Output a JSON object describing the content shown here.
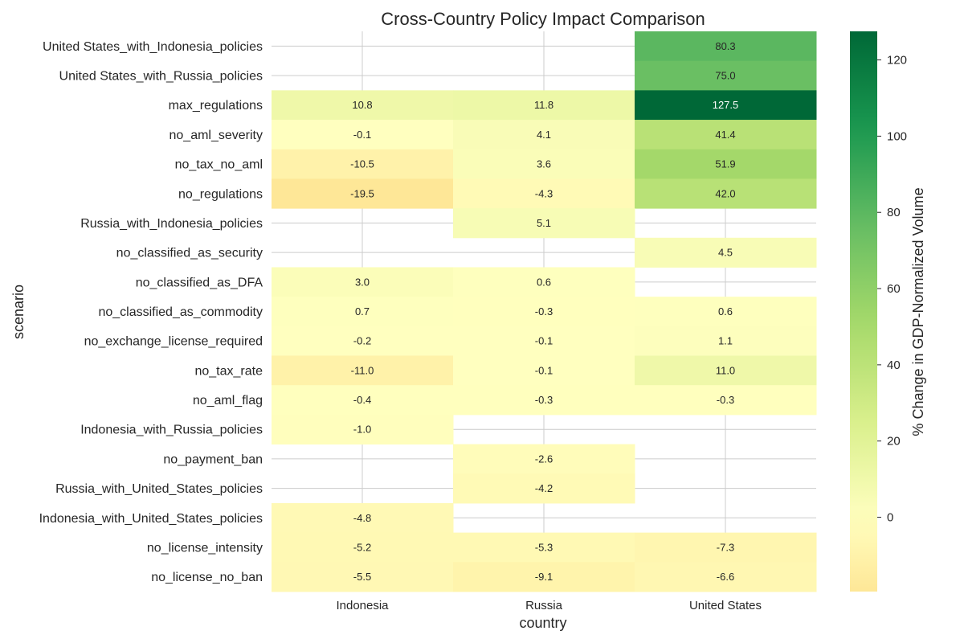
{
  "chart_data": {
    "type": "heatmap",
    "title": "Cross-Country Policy Impact Comparison",
    "xlabel": "country",
    "ylabel": "scenario",
    "colorbar_label": "% Change in GDP-Normalized Volume",
    "colorbar_ticks": [
      0,
      20,
      40,
      60,
      80,
      100,
      120
    ],
    "value_range": [
      -19.5,
      127.5
    ],
    "colormap": "RdYlGn (centered at 0)",
    "grid": true,
    "columns": [
      "Indonesia",
      "Russia",
      "United States"
    ],
    "rows": [
      "United States_with_Indonesia_policies",
      "United States_with_Russia_policies",
      "max_regulations",
      "no_aml_severity",
      "no_tax_no_aml",
      "no_regulations",
      "Russia_with_Indonesia_policies",
      "no_classified_as_security",
      "no_classified_as_DFA",
      "no_classified_as_commodity",
      "no_exchange_license_required",
      "no_tax_rate",
      "no_aml_flag",
      "Indonesia_with_Russia_policies",
      "no_payment_ban",
      "Russia_with_United_States_policies",
      "Indonesia_with_United_States_policies",
      "no_license_intensity",
      "no_license_no_ban"
    ],
    "values": [
      [
        null,
        null,
        80.3
      ],
      [
        null,
        null,
        75.0
      ],
      [
        10.8,
        11.8,
        127.5
      ],
      [
        -0.1,
        4.1,
        41.4
      ],
      [
        -10.5,
        3.6,
        51.9
      ],
      [
        -19.5,
        -4.3,
        42.0
      ],
      [
        null,
        5.1,
        null
      ],
      [
        null,
        null,
        4.5
      ],
      [
        3.0,
        0.6,
        null
      ],
      [
        0.7,
        -0.3,
        0.6
      ],
      [
        -0.2,
        -0.1,
        1.1
      ],
      [
        -11.0,
        -0.1,
        11.0
      ],
      [
        -0.4,
        -0.3,
        -0.3
      ],
      [
        -1.0,
        null,
        null
      ],
      [
        null,
        -2.6,
        null
      ],
      [
        null,
        -4.2,
        null
      ],
      [
        -4.8,
        null,
        null
      ],
      [
        -5.2,
        -5.3,
        -7.3
      ],
      [
        -5.5,
        -9.1,
        -6.6
      ]
    ]
  }
}
